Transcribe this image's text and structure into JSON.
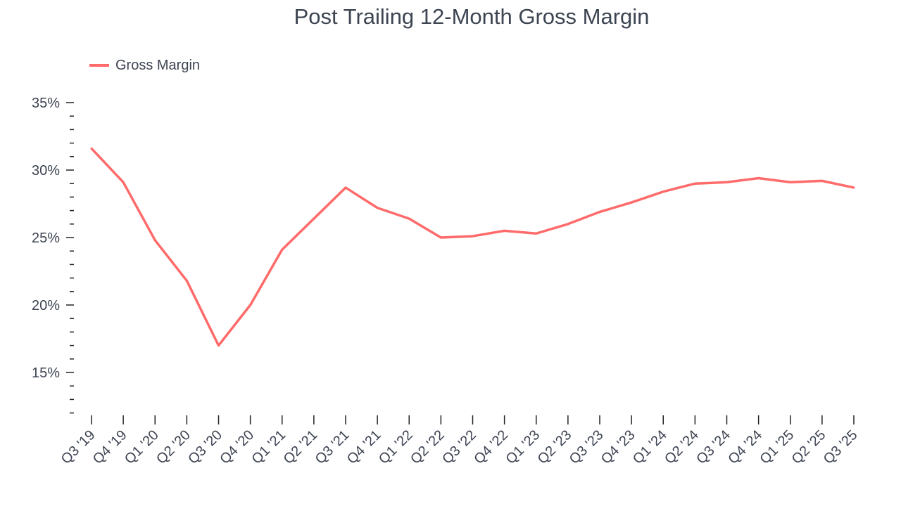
{
  "chart_data": {
    "type": "line",
    "title": "Post Trailing 12-Month Gross Margin",
    "xlabel": "",
    "ylabel": "",
    "legend": {
      "entries": [
        "Gross Margin"
      ],
      "placement": "top-left"
    },
    "categories": [
      "Q3 '19",
      "Q4 '19",
      "Q1 '20",
      "Q2 '20",
      "Q3 '20",
      "Q4 '20",
      "Q1 '21",
      "Q2 '21",
      "Q3 '21",
      "Q4 '21",
      "Q1 '22",
      "Q2 '22",
      "Q3 '22",
      "Q4 '22",
      "Q1 '23",
      "Q2 '23",
      "Q3 '23",
      "Q4 '23",
      "Q1 '24",
      "Q2 '24",
      "Q3 '24",
      "Q4 '24",
      "Q1 '25",
      "Q2 '25",
      "Q3 '25"
    ],
    "series": [
      {
        "name": "Gross Margin",
        "color": "#ff6b6b",
        "values": [
          31.6,
          29.1,
          24.8,
          21.8,
          17.0,
          20.0,
          24.1,
          26.4,
          28.7,
          27.2,
          26.4,
          25.0,
          25.1,
          25.5,
          25.3,
          26.0,
          26.9,
          27.6,
          28.4,
          29.0,
          29.1,
          29.4,
          29.1,
          29.2,
          28.7
        ]
      }
    ],
    "ylim": [
      12,
      35
    ],
    "yticks": [
      15,
      20,
      25,
      30,
      35
    ],
    "ytick_labels": [
      "15%",
      "20%",
      "25%",
      "30%",
      "35%"
    ],
    "grid": false
  }
}
